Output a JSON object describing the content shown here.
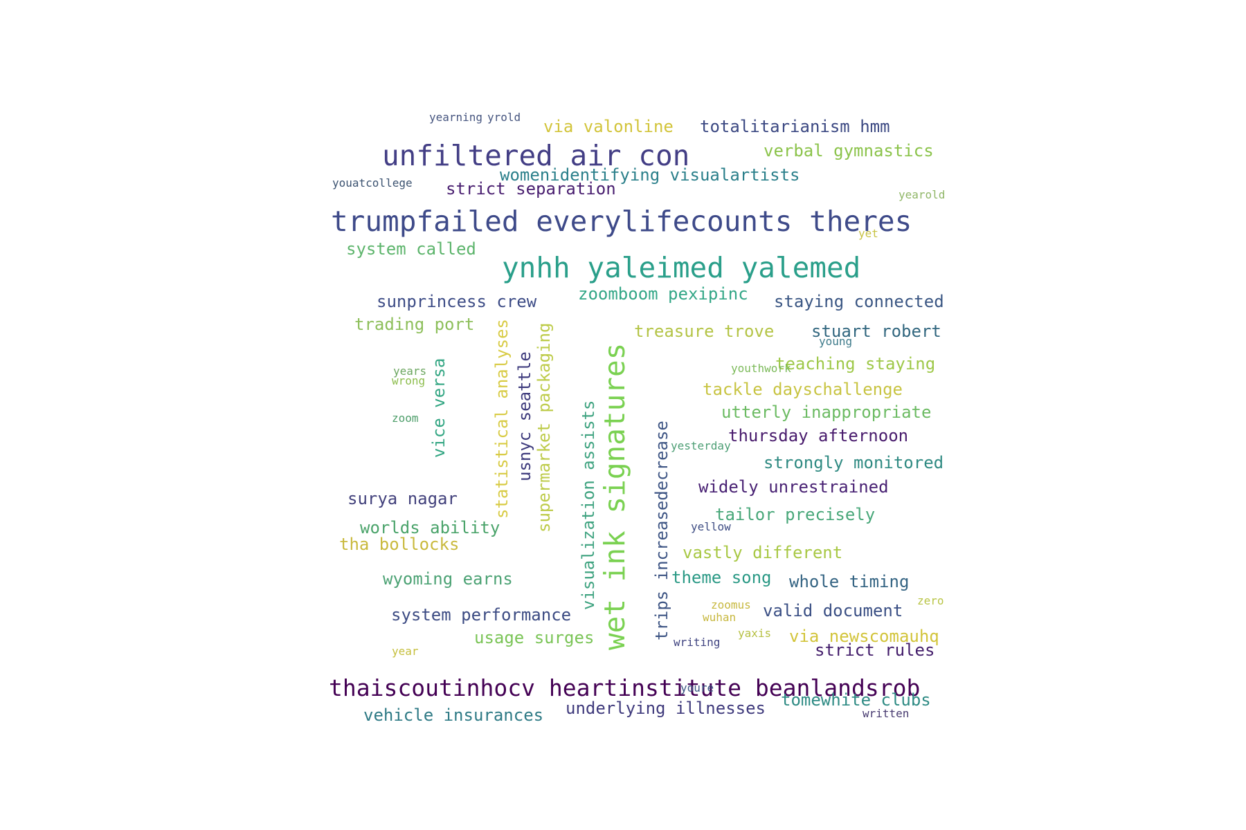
{
  "words": [
    {
      "text": "unfiltered air con",
      "color": "#433e85"
    },
    {
      "text": "trumpfailed everylifecounts theres",
      "color": "#3e4a89"
    },
    {
      "text": "ynhh yaleimed yalemed",
      "color": "#2a9f8a"
    },
    {
      "text": "thaiscoutinhocv heartinstitute beanlandsrob",
      "color": "#440154"
    },
    {
      "text": "wet ink signatures",
      "color": "#7ad151"
    },
    {
      "text": "yearning",
      "color": "#46557f"
    },
    {
      "text": "yrold",
      "color": "#46557f"
    },
    {
      "text": "via valonline",
      "color": "#d2c43a"
    },
    {
      "text": "totalitarianism hmm",
      "color": "#3b4882"
    },
    {
      "text": "verbal gymnastics",
      "color": "#8bc34a"
    },
    {
      "text": "womenidentifying visualartists",
      "color": "#2a7f8a"
    },
    {
      "text": "youatcollege",
      "color": "#3b5270"
    },
    {
      "text": "strict separation",
      "color": "#481d6f"
    },
    {
      "text": "yearold",
      "color": "#8fb666"
    },
    {
      "text": "system called",
      "color": "#5cb46b"
    },
    {
      "text": "yet",
      "color": "#c7c242"
    },
    {
      "text": "zoomboom pexipinc",
      "color": "#32a686"
    },
    {
      "text": "sunprincess crew",
      "color": "#3d4c86"
    },
    {
      "text": "staying connected",
      "color": "#3a5683"
    },
    {
      "text": "trading port",
      "color": "#8dbf5a"
    },
    {
      "text": "treasure trove",
      "color": "#b4c446"
    },
    {
      "text": "stuart robert",
      "color": "#32677f"
    },
    {
      "text": "young",
      "color": "#3d7a8a"
    },
    {
      "text": "teaching staying",
      "color": "#9ec848"
    },
    {
      "text": "statistical analyses",
      "color": "#d8cb44"
    },
    {
      "text": "usnyc seattle",
      "color": "#3e3b7d"
    },
    {
      "text": "supermarket packaging",
      "color": "#bdcb48"
    },
    {
      "text": "visualization assists",
      "color": "#3fa380"
    },
    {
      "text": "trips increasedecrease",
      "color": "#3e5584"
    },
    {
      "text": "vice versa",
      "color": "#33a683"
    },
    {
      "text": "years",
      "color": "#6aa55e"
    },
    {
      "text": "wrong",
      "color": "#8cbd4c"
    },
    {
      "text": "youthwork",
      "color": "#7cba5a"
    },
    {
      "text": "tackle dayschallenge",
      "color": "#c8c442"
    },
    {
      "text": "utterly inappropriate",
      "color": "#6cbb63"
    },
    {
      "text": "zoom",
      "color": "#4e9e6a"
    },
    {
      "text": "thursday afternoon",
      "color": "#481a6c"
    },
    {
      "text": "yesterday",
      "color": "#4c9e74"
    },
    {
      "text": "strongly monitored",
      "color": "#2f8a82"
    },
    {
      "text": "widely unrestrained",
      "color": "#482173"
    },
    {
      "text": "surya nagar",
      "color": "#42417c"
    },
    {
      "text": "tailor precisely",
      "color": "#48a779"
    },
    {
      "text": "yellow",
      "color": "#3d4c83"
    },
    {
      "text": "worlds ability",
      "color": "#4aa36a"
    },
    {
      "text": "tha bollocks",
      "color": "#c9b93c"
    },
    {
      "text": "vastly different",
      "color": "#a8c844"
    },
    {
      "text": "wyoming earns",
      "color": "#4ca274"
    },
    {
      "text": "theme song",
      "color": "#2a9985"
    },
    {
      "text": "whole timing",
      "color": "#336382"
    },
    {
      "text": "zoomus",
      "color": "#c7b83f"
    },
    {
      "text": "wuhan",
      "color": "#c7b83f"
    },
    {
      "text": "zero",
      "color": "#b8c444"
    },
    {
      "text": "system performance",
      "color": "#3c4b83"
    },
    {
      "text": "valid document",
      "color": "#3a4f84"
    },
    {
      "text": "usage surges",
      "color": "#7ac456"
    },
    {
      "text": "yaxis",
      "color": "#b6c042"
    },
    {
      "text": "writing",
      "color": "#3f4380"
    },
    {
      "text": "via newscomauhq",
      "color": "#d2c43a"
    },
    {
      "text": "strict rules",
      "color": "#421c6a"
    },
    {
      "text": "year",
      "color": "#c5bf3c"
    },
    {
      "text": "youre",
      "color": "#3b5784"
    },
    {
      "text": "tomewhite clubs",
      "color": "#2e8b84"
    },
    {
      "text": "vehicle insurances",
      "color": "#2e7a85"
    },
    {
      "text": "underlying illnesses",
      "color": "#3f3a7c"
    },
    {
      "text": "written",
      "color": "#46396f"
    }
  ]
}
